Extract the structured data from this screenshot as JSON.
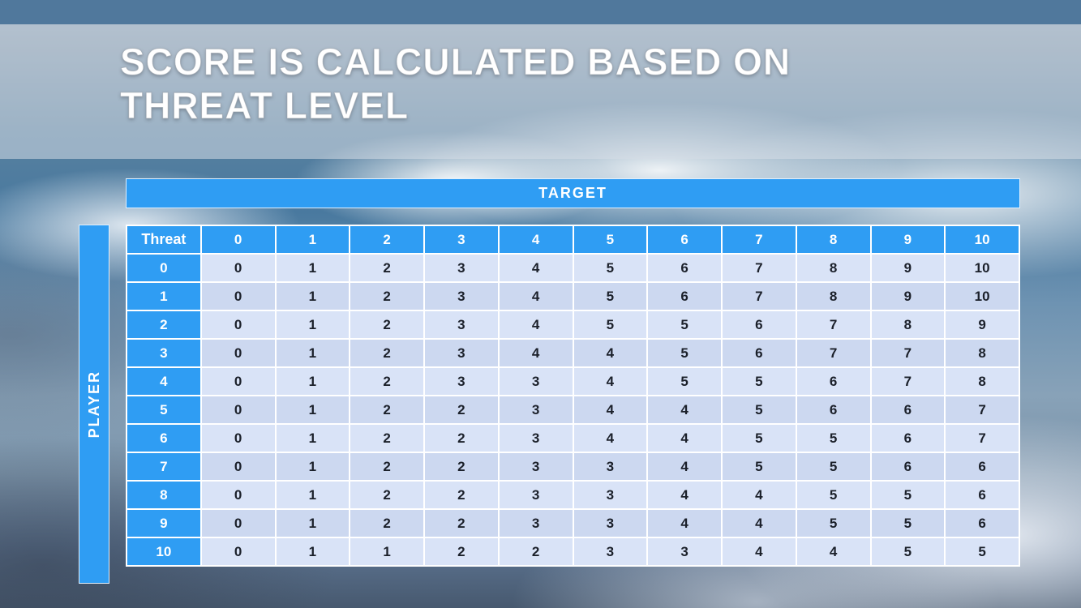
{
  "title": {
    "line1": "SCORE IS CALCULATED BASED ON",
    "line2": "THREAT LEVEL"
  },
  "table": {
    "target_label": "TARGET",
    "player_label": "PLAYER",
    "corner_label": "Threat",
    "col_headers": [
      "0",
      "1",
      "2",
      "3",
      "4",
      "5",
      "6",
      "7",
      "8",
      "9",
      "10"
    ],
    "rows": [
      {
        "threat": "0",
        "values": [
          "0",
          "1",
          "2",
          "3",
          "4",
          "5",
          "6",
          "7",
          "8",
          "9",
          "10"
        ]
      },
      {
        "threat": "1",
        "values": [
          "0",
          "1",
          "2",
          "3",
          "4",
          "5",
          "6",
          "7",
          "8",
          "9",
          "10"
        ]
      },
      {
        "threat": "2",
        "values": [
          "0",
          "1",
          "2",
          "3",
          "4",
          "5",
          "5",
          "6",
          "7",
          "8",
          "9"
        ]
      },
      {
        "threat": "3",
        "values": [
          "0",
          "1",
          "2",
          "3",
          "4",
          "4",
          "5",
          "6",
          "7",
          "7",
          "8"
        ]
      },
      {
        "threat": "4",
        "values": [
          "0",
          "1",
          "2",
          "3",
          "3",
          "4",
          "5",
          "5",
          "6",
          "7",
          "8"
        ]
      },
      {
        "threat": "5",
        "values": [
          "0",
          "1",
          "2",
          "2",
          "3",
          "4",
          "4",
          "5",
          "6",
          "6",
          "7"
        ]
      },
      {
        "threat": "6",
        "values": [
          "0",
          "1",
          "2",
          "2",
          "3",
          "4",
          "4",
          "5",
          "5",
          "6",
          "7"
        ]
      },
      {
        "threat": "7",
        "values": [
          "0",
          "1",
          "2",
          "2",
          "3",
          "3",
          "4",
          "5",
          "5",
          "6",
          "6"
        ]
      },
      {
        "threat": "8",
        "values": [
          "0",
          "1",
          "2",
          "2",
          "3",
          "3",
          "4",
          "4",
          "5",
          "5",
          "6"
        ]
      },
      {
        "threat": "9",
        "values": [
          "0",
          "1",
          "2",
          "2",
          "3",
          "3",
          "4",
          "4",
          "5",
          "5",
          "6"
        ]
      },
      {
        "threat": "10",
        "values": [
          "0",
          "1",
          "1",
          "2",
          "2",
          "3",
          "3",
          "4",
          "4",
          "5",
          "5"
        ]
      }
    ]
  },
  "colors": {
    "accent_blue": "#2f9df3",
    "top_bar": "#50789c",
    "cell_light": "#d9e3f7",
    "cell_alt": "#ccd8f0",
    "cell_text": "#1b202a"
  }
}
